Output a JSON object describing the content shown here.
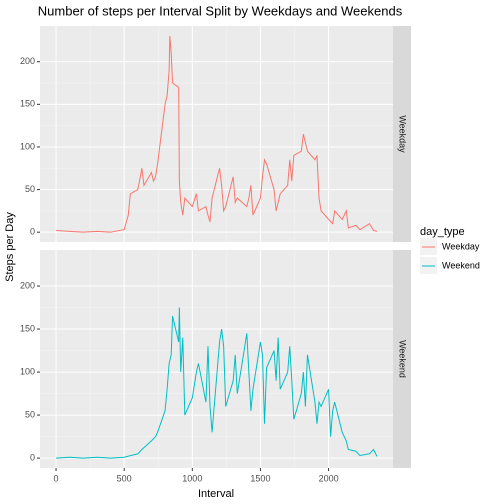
{
  "chart_data": {
    "type": "line",
    "title": "Number of steps per Interval Split by Weekdays and Weekends",
    "x_label": "Interval",
    "y_label": "Steps per Day",
    "legend_title": "day_type",
    "xlim": [
      -117.75,
      2472.75
    ],
    "xticks": [
      0,
      500,
      1000,
      1500,
      2000
    ],
    "ylim": [
      -11.52,
      241.9
    ],
    "yticks": [
      0,
      50,
      100,
      150,
      200
    ],
    "grid": true,
    "legend": "right",
    "series": [
      {
        "name": "Weekday",
        "color": "#F8766D",
        "x": [
          0,
          100,
          200,
          300,
          400,
          500,
          530,
          545,
          600,
          615,
          630,
          645,
          700,
          715,
          730,
          745,
          800,
          815,
          830,
          835,
          845,
          855,
          900,
          905,
          915,
          930,
          945,
          1000,
          1030,
          1045,
          1100,
          1115,
          1130,
          1145,
          1200,
          1215,
          1230,
          1245,
          1300,
          1315,
          1330,
          1400,
          1415,
          1430,
          1445,
          1500,
          1515,
          1530,
          1545,
          1600,
          1615,
          1630,
          1645,
          1700,
          1715,
          1730,
          1745,
          1800,
          1815,
          1830,
          1845,
          1900,
          1915,
          1930,
          1945,
          2000,
          2030,
          2045,
          2100,
          2130,
          2145,
          2200,
          2230,
          2300,
          2330,
          2355
        ],
        "values": [
          2,
          1,
          0,
          1,
          0,
          3,
          20,
          45,
          50,
          62,
          75,
          55,
          70,
          60,
          65,
          80,
          150,
          160,
          190,
          230,
          210,
          175,
          170,
          60,
          35,
          20,
          40,
          30,
          45,
          25,
          30,
          20,
          12,
          40,
          75,
          55,
          25,
          30,
          65,
          35,
          40,
          30,
          40,
          55,
          20,
          40,
          65,
          85,
          80,
          50,
          25,
          35,
          45,
          55,
          85,
          60,
          90,
          95,
          115,
          105,
          95,
          85,
          90,
          40,
          25,
          15,
          10,
          25,
          15,
          25,
          5,
          8,
          3,
          10,
          2,
          1
        ]
      },
      {
        "name": "Weekend",
        "color": "#00BFC4",
        "x": [
          0,
          100,
          200,
          300,
          400,
          500,
          600,
          630,
          700,
          730,
          745,
          800,
          815,
          830,
          845,
          855,
          900,
          905,
          915,
          930,
          945,
          1000,
          1030,
          1045,
          1100,
          1115,
          1130,
          1145,
          1200,
          1215,
          1230,
          1245,
          1300,
          1315,
          1330,
          1400,
          1415,
          1430,
          1445,
          1500,
          1515,
          1530,
          1545,
          1600,
          1615,
          1630,
          1645,
          1700,
          1715,
          1730,
          1745,
          1800,
          1815,
          1830,
          1845,
          1900,
          1915,
          1930,
          1945,
          2000,
          2015,
          2030,
          2045,
          2100,
          2130,
          2145,
          2200,
          2230,
          2300,
          2330,
          2355
        ],
        "values": [
          0,
          1,
          0,
          1,
          0,
          1,
          5,
          10,
          20,
          25,
          30,
          55,
          80,
          110,
          120,
          165,
          135,
          175,
          100,
          140,
          50,
          70,
          100,
          110,
          65,
          130,
          60,
          30,
          135,
          150,
          130,
          60,
          90,
          120,
          75,
          145,
          100,
          55,
          80,
          135,
          120,
          40,
          105,
          125,
          90,
          140,
          80,
          100,
          130,
          90,
          45,
          75,
          100,
          60,
          120,
          65,
          40,
          65,
          60,
          80,
          25,
          55,
          65,
          30,
          20,
          10,
          8,
          3,
          5,
          10,
          2
        ]
      }
    ]
  }
}
